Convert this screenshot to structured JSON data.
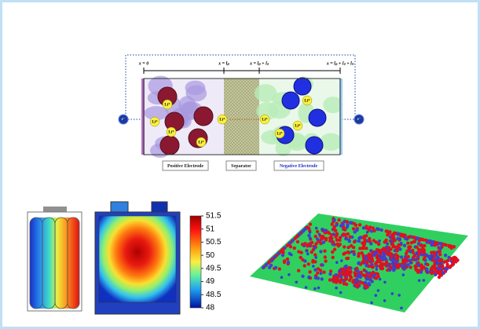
{
  "diagram": {
    "positions": [
      "x = 0",
      "x = lₚ",
      "x = lₚ + lₛ",
      "x = lₚ + lₛ + lₙ"
    ],
    "electrons": [
      "e⁻",
      "e⁻"
    ],
    "ions": [
      "Li⁺",
      "Li⁺",
      "Li⁺",
      "Li⁺",
      "Li⁺",
      "Li⁺",
      "Li⁺",
      "Li⁺",
      "Li⁺"
    ],
    "regions": [
      "Positive Electrode",
      "Separator",
      "Negative Electrode"
    ]
  },
  "colorbar": {
    "range": [
      48,
      51.5
    ],
    "ticks": [
      51.5,
      51,
      50.5,
      50,
      49.5,
      49,
      48.5,
      48
    ]
  }
}
